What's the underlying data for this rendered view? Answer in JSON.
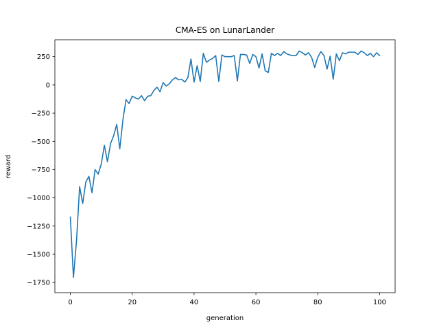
{
  "chart_data": {
    "type": "line",
    "title": "CMA-ES on LunarLander",
    "xlabel": "generation",
    "ylabel": "reward",
    "xlim": [
      -5,
      105
    ],
    "ylim": [
      -1840,
      400
    ],
    "xticks": [
      0,
      20,
      40,
      60,
      80,
      100
    ],
    "yticks": [
      250,
      0,
      -250,
      -500,
      -750,
      -1000,
      -1250,
      -1500,
      -1750
    ],
    "xtick_labels": [
      "0",
      "20",
      "40",
      "60",
      "80",
      "100"
    ],
    "ytick_labels": [
      "250",
      "0",
      "−250",
      "−500",
      "−750",
      "−1000",
      "−1250",
      "−1500",
      "−1750"
    ],
    "grid": false,
    "colors": {
      "line": "#1f77b4"
    },
    "series": [
      {
        "x": [
          0,
          1,
          2,
          3,
          4,
          5,
          6,
          7,
          8,
          9,
          10,
          11,
          12,
          13,
          14,
          15,
          16,
          17,
          18,
          19,
          20,
          21,
          22,
          23,
          24,
          25,
          26,
          27,
          28,
          29,
          30,
          31,
          32,
          33,
          34,
          35,
          36,
          37,
          38,
          39,
          40,
          41,
          42,
          43,
          44,
          45,
          46,
          47,
          48,
          49,
          50,
          51,
          52,
          53,
          54,
          55,
          56,
          57,
          58,
          59,
          60,
          61,
          62,
          63,
          64,
          65,
          66,
          67,
          68,
          69,
          70,
          71,
          72,
          73,
          74,
          75,
          76,
          77,
          78,
          79,
          80,
          81,
          82,
          83,
          84,
          85,
          86,
          87,
          88,
          89,
          90,
          91,
          92,
          93,
          94,
          95,
          96,
          97,
          98,
          99,
          100
        ],
        "values": [
          -1170,
          -1705,
          -1380,
          -900,
          -1050,
          -860,
          -810,
          -955,
          -750,
          -790,
          -700,
          -535,
          -680,
          -520,
          -450,
          -350,
          -565,
          -310,
          -130,
          -165,
          -100,
          -115,
          -125,
          -95,
          -140,
          -100,
          -95,
          -50,
          -20,
          -60,
          20,
          -10,
          10,
          45,
          65,
          45,
          50,
          25,
          65,
          230,
          25,
          170,
          30,
          280,
          200,
          220,
          235,
          260,
          30,
          265,
          250,
          250,
          250,
          260,
          35,
          270,
          270,
          265,
          190,
          270,
          250,
          150,
          275,
          125,
          110,
          280,
          260,
          280,
          260,
          295,
          275,
          265,
          260,
          260,
          300,
          285,
          265,
          285,
          245,
          155,
          245,
          295,
          260,
          140,
          255,
          50,
          275,
          215,
          285,
          275,
          290,
          290,
          290,
          270,
          300,
          285,
          260,
          280,
          250,
          285,
          260
        ]
      }
    ]
  }
}
